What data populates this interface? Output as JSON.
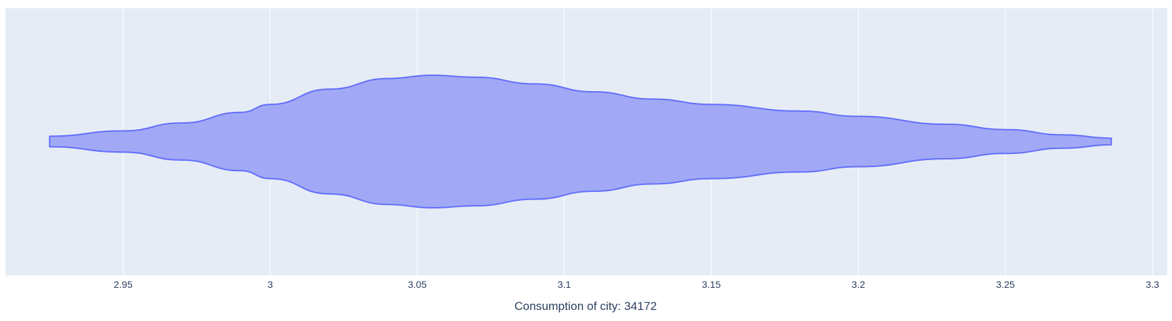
{
  "chart_data": {
    "type": "violin",
    "orientation": "horizontal",
    "title": "",
    "xlabel": "Consumption of city: 34172",
    "ylabel": "",
    "xlim": [
      2.91,
      3.305
    ],
    "xticks": [
      2.95,
      3,
      3.05,
      3.1,
      3.15,
      3.2,
      3.25,
      3.3
    ],
    "xtick_labels": [
      "2.95",
      "3",
      "3.05",
      "3.1",
      "3.15",
      "3.2",
      "3.25",
      "3.3"
    ],
    "grid": true,
    "legend": "none",
    "series": [
      {
        "min": 2.925,
        "max": 3.286,
        "density_profile": {
          "x": [
            2.925,
            2.95,
            2.97,
            2.99,
            3.0,
            3.02,
            3.04,
            3.055,
            3.07,
            3.09,
            3.11,
            3.13,
            3.15,
            3.18,
            3.2,
            3.23,
            3.25,
            3.27,
            3.286
          ],
          "relative_width": [
            0.08,
            0.16,
            0.28,
            0.44,
            0.56,
            0.79,
            0.95,
            1.0,
            0.97,
            0.87,
            0.75,
            0.64,
            0.56,
            0.46,
            0.38,
            0.26,
            0.18,
            0.1,
            0.05
          ]
        }
      }
    ]
  },
  "colors": {
    "plot_bg": "#e5ecf6",
    "grid": "#ffffff",
    "violin_fill": "#a1a9f6",
    "violin_line": "#636efa",
    "text": "#2a3f5f"
  }
}
